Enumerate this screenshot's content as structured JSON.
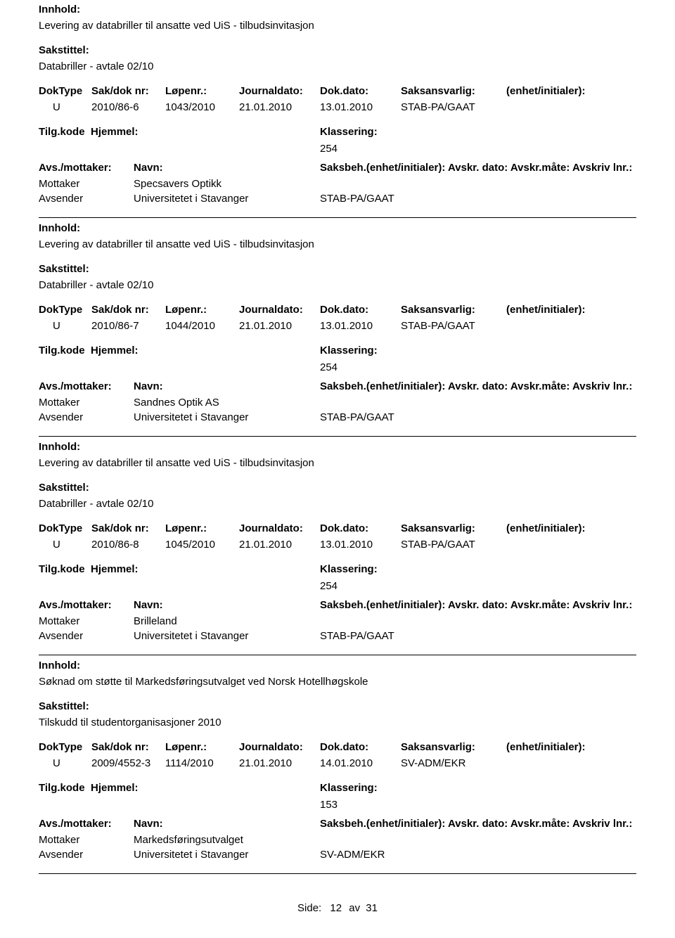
{
  "labels": {
    "innhold": "Innhold:",
    "sakstittel": "Sakstittel:",
    "doktype": "DokType",
    "sakdok": "Sak/dok nr:",
    "lopenr": "Løpenr.:",
    "journaldato": "Journaldato:",
    "dokdato": "Dok.dato:",
    "saksansvarlig": "Saksansvarlig:",
    "enhet": "(enhet/initialer):",
    "tilgkode": "Tilg.kode",
    "hjemmel": "Hjemmel:",
    "klassering": "Klassering:",
    "avsmottaker": "Avs./mottaker:",
    "navn": "Navn:",
    "saksbeh_full": "Saksbeh.(enhet/initialer): Avskr. dato: Avskr.måte: Avskriv lnr.:",
    "mottaker": "Mottaker",
    "avsender": "Avsender"
  },
  "footer": {
    "side": "Side:",
    "page": "12",
    "av": "av",
    "total": "31"
  },
  "entries": [
    {
      "innhold": "Levering av databriller til ansatte ved UiS - tilbudsinvitasjon",
      "sakstittel": "Databriller - avtale 02/10",
      "doktype": "U",
      "sakdok": "2010/86-6",
      "lopenr": "1043/2010",
      "journaldato": "21.01.2010",
      "dokdato": "13.01.2010",
      "saksansvarlig": "STAB-PA/GAAT",
      "klassering": "254",
      "mottaker_name": "Specsavers Optikk",
      "avsender_name": "Universitetet i Stavanger",
      "avsender_unit": "STAB-PA/GAAT"
    },
    {
      "innhold": "Levering av databriller til ansatte ved UiS - tilbudsinvitasjon",
      "sakstittel": "Databriller - avtale 02/10",
      "doktype": "U",
      "sakdok": "2010/86-7",
      "lopenr": "1044/2010",
      "journaldato": "21.01.2010",
      "dokdato": "13.01.2010",
      "saksansvarlig": "STAB-PA/GAAT",
      "klassering": "254",
      "mottaker_name": "Sandnes Optik AS",
      "avsender_name": "Universitetet i Stavanger",
      "avsender_unit": "STAB-PA/GAAT"
    },
    {
      "innhold": "Levering av databriller til ansatte ved UiS - tilbudsinvitasjon",
      "sakstittel": "Databriller - avtale 02/10",
      "doktype": "U",
      "sakdok": "2010/86-8",
      "lopenr": "1045/2010",
      "journaldato": "21.01.2010",
      "dokdato": "13.01.2010",
      "saksansvarlig": "STAB-PA/GAAT",
      "klassering": "254",
      "mottaker_name": "Brilleland",
      "avsender_name": "Universitetet i Stavanger",
      "avsender_unit": "STAB-PA/GAAT"
    },
    {
      "innhold": "Søknad om støtte til Markedsføringsutvalget ved Norsk Hotellhøgskole",
      "sakstittel": "Tilskudd til studentorganisasjoner 2010",
      "doktype": "U",
      "sakdok": "2009/4552-3",
      "lopenr": "1114/2010",
      "journaldato": "21.01.2010",
      "dokdato": "14.01.2010",
      "saksansvarlig": "SV-ADM/EKR",
      "klassering": "153",
      "mottaker_name": "Markedsføringsutvalget",
      "avsender_name": "Universitetet i Stavanger",
      "avsender_unit": "SV-ADM/EKR"
    }
  ]
}
